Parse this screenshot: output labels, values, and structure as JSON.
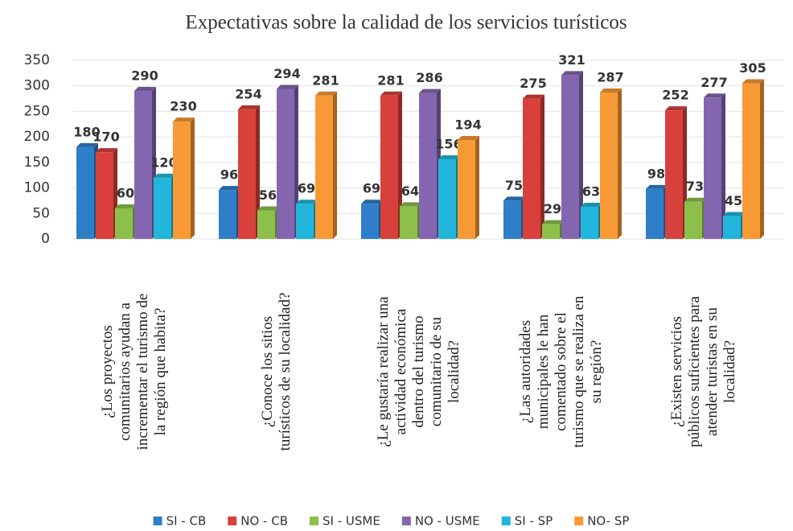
{
  "chart_data": {
    "type": "bar",
    "title": "Expectativas sobre la calidad de los servicios turísticos",
    "categories": [
      "¿Los proyectos\ncomunitarios ayudan a\nincrementar el turismo de\nla región que habita?",
      "¿Conoce los sitios\nturísticos de su localidad?",
      "¿Le gustaría realizar una\nactividad  económica\ndentro del turismo\ncomunitario de su\nlocalidad?",
      "¿Las autoridades\nmunicipales le han\ncomentado sobre el\nturismo que se realiza en\nsu región?",
      "¿Existen servicios\npúblicos suficientes para\natender turistas en su\nlocalidad?"
    ],
    "series": [
      {
        "name": "SI - CB",
        "color": "#2f7fc8",
        "values": [
          180,
          96,
          69,
          75,
          98
        ]
      },
      {
        "name": "NO - CB",
        "color": "#d8413b",
        "values": [
          170,
          254,
          281,
          275,
          252
        ]
      },
      {
        "name": "SI - USME",
        "color": "#8cc04b",
        "values": [
          60,
          56,
          64,
          29,
          73
        ]
      },
      {
        "name": "NO - USME",
        "color": "#8466b0",
        "values": [
          290,
          294,
          286,
          321,
          277
        ]
      },
      {
        "name": "SI - SP",
        "color": "#22b6dc",
        "values": [
          120,
          69,
          156,
          63,
          45
        ]
      },
      {
        "name": "NO- SP",
        "color": "#f79a35",
        "values": [
          230,
          281,
          194,
          287,
          305
        ]
      }
    ],
    "ylim": [
      0,
      350
    ],
    "yticks": [
      0,
      50,
      100,
      150,
      200,
      250,
      300,
      350
    ],
    "grid": true,
    "legend": "bottom"
  }
}
